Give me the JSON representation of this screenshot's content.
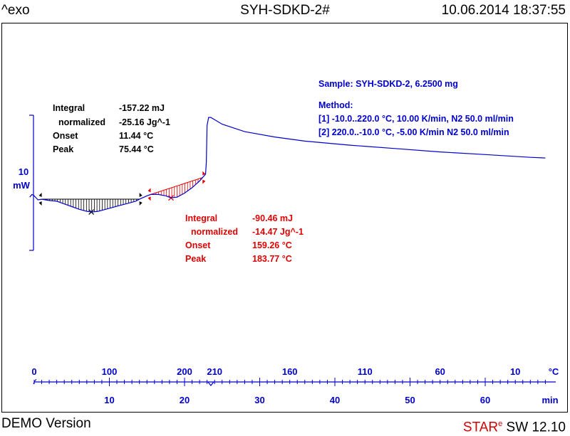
{
  "header": {
    "exo": "^exo",
    "title": "SYH-SDKD-2#",
    "datetime": "10.06.2014 18:37:55"
  },
  "footer": {
    "demo": "DEMO Version",
    "sw_star": "STAR",
    "sw_sup": "e",
    "sw_version": " SW 12.10"
  },
  "sample": {
    "text": "Sample: SYH-SDKD-2, 6.2500 mg"
  },
  "method": {
    "title": "Method:",
    "lines": [
      "[1] -10.0..220.0 °C, 10.00 K/min, N2 50.0 ml/min",
      "[2] 220.0..-10.0 °C, -5.00 K/min  N2 50.0 ml/min"
    ]
  },
  "scale_bar": {
    "value": "10",
    "unit": "mW"
  },
  "result1": {
    "rows": [
      {
        "label": "Integral",
        "value": "-157.22 mJ"
      },
      {
        "label": "normalized",
        "value": "-25.16 Jg^-1"
      },
      {
        "label": "Onset",
        "value": "11.44 °C"
      },
      {
        "label": "Peak",
        "value": "75.44 °C"
      }
    ],
    "color": "#000000"
  },
  "result2": {
    "rows": [
      {
        "label": "Integral",
        "value": "-90.46 mJ"
      },
      {
        "label": "normalized",
        "value": "-14.47 Jg^-1"
      },
      {
        "label": "Onset",
        "value": "159.26 °C"
      },
      {
        "label": "Peak",
        "value": "183.77 °C"
      }
    ],
    "color": "#e00000"
  },
  "chart_data": {
    "type": "line",
    "xlabel": "min",
    "temp_axis": {
      "unit": "°C",
      "labels": [
        {
          "text": "0",
          "time_min": 0
        },
        {
          "text": "100",
          "time_min": 10
        },
        {
          "text": "200",
          "time_min": 20
        },
        {
          "text": "210",
          "time_min": 24
        },
        {
          "text": "160",
          "time_min": 34
        },
        {
          "text": "110",
          "time_min": 44
        },
        {
          "text": "60",
          "time_min": 54
        },
        {
          "text": "10",
          "time_min": 64
        }
      ]
    },
    "time_axis": {
      "ticks": [
        10,
        20,
        30,
        40,
        50,
        60
      ],
      "xlim": [
        0,
        68
      ]
    },
    "series": [
      {
        "color": "#0000cc",
        "points": [
          [
            -0.6,
            0.2
          ],
          [
            -0.3,
            0.4
          ],
          [
            0.0,
            0.3
          ],
          [
            0.5,
            0.0
          ],
          [
            1.0,
            0.05
          ],
          [
            2.0,
            -0.05
          ],
          [
            3.0,
            -0.1
          ],
          [
            4.0,
            -0.3
          ],
          [
            5.0,
            -0.5
          ],
          [
            6.0,
            -0.7
          ],
          [
            7.0,
            -0.85
          ],
          [
            7.6,
            -0.9
          ],
          [
            8.5,
            -0.85
          ],
          [
            9.5,
            -0.7
          ],
          [
            10.5,
            -0.55
          ],
          [
            11.5,
            -0.4
          ],
          [
            12.5,
            -0.25
          ],
          [
            13.5,
            -0.1
          ],
          [
            14.0,
            0.05
          ],
          [
            15.0,
            0.3
          ],
          [
            15.5,
            0.4
          ],
          [
            16.5,
            0.4
          ],
          [
            17.5,
            0.3
          ],
          [
            18.2,
            0.15
          ],
          [
            19.0,
            0.2
          ],
          [
            20.0,
            0.5
          ],
          [
            21.0,
            0.9
          ],
          [
            22.0,
            1.4
          ],
          [
            22.8,
            1.9
          ],
          [
            22.9,
            2.8
          ],
          [
            23.0,
            5.5
          ],
          [
            23.2,
            6.1
          ],
          [
            23.5,
            6.1
          ],
          [
            25.0,
            5.6
          ],
          [
            28.0,
            5.05
          ],
          [
            32.0,
            4.65
          ],
          [
            36.0,
            4.35
          ],
          [
            42.0,
            4.05
          ],
          [
            48.0,
            3.8
          ],
          [
            54.0,
            3.55
          ],
          [
            60.0,
            3.35
          ],
          [
            66.0,
            3.15
          ],
          [
            68.0,
            3.1
          ]
        ]
      }
    ],
    "peaks": [
      {
        "onset_min": 1.0,
        "end_min": 14.0,
        "peak_min": 7.6,
        "color": "#000000"
      },
      {
        "onset_min": 15.5,
        "end_min": 22.4,
        "peak_min": 18.2,
        "color": "#e00000"
      }
    ],
    "scale_bar_mW": 10
  }
}
